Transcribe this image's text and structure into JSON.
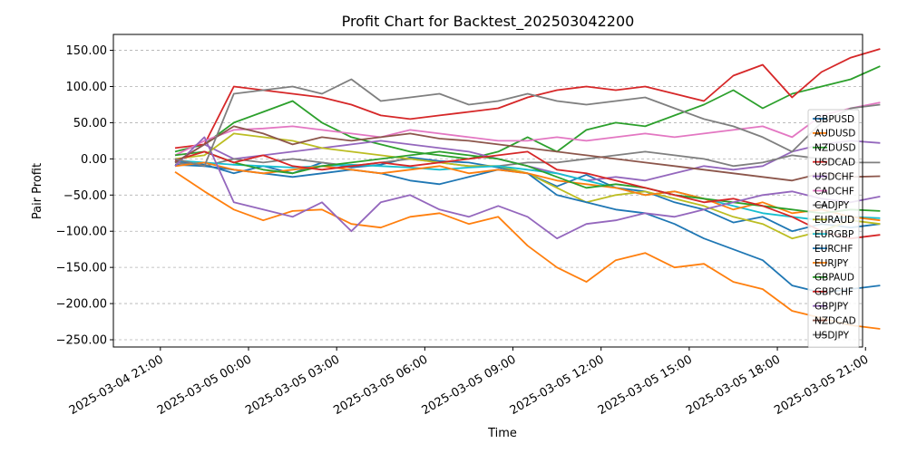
{
  "chart_data": {
    "type": "line",
    "title": "Profit Chart for Backtest_202503042200",
    "xlabel": "Time",
    "ylabel": "Pair Profit",
    "xlim": [
      -1.6,
      23.9
    ],
    "ylim": [
      -260,
      172
    ],
    "grid": true,
    "legend_position": "right",
    "x_unit": "hours since 2025-03-04 21:00",
    "x_ticks": [
      {
        "x": 0,
        "label": "2025-03-04 21:00"
      },
      {
        "x": 3,
        "label": "2025-03-05 00:00"
      },
      {
        "x": 6,
        "label": "2025-03-05 03:00"
      },
      {
        "x": 9,
        "label": "2025-03-05 06:00"
      },
      {
        "x": 12,
        "label": "2025-03-05 09:00"
      },
      {
        "x": 15,
        "label": "2025-03-05 12:00"
      },
      {
        "x": 18,
        "label": "2025-03-05 15:00"
      },
      {
        "x": 21,
        "label": "2025-03-05 18:00"
      },
      {
        "x": 24,
        "label": "2025-03-05 21:00"
      }
    ],
    "y_ticks": [
      {
        "y": 150,
        "label": "150.00"
      },
      {
        "y": 100,
        "label": "100.00"
      },
      {
        "y": 50,
        "label": "50.00"
      },
      {
        "y": 0,
        "label": "0.00"
      },
      {
        "y": -50,
        "label": "−50.00"
      },
      {
        "y": -100,
        "label": "−100.00"
      },
      {
        "y": -150,
        "label": "−150.00"
      },
      {
        "y": -200,
        "label": "−200.00"
      },
      {
        "y": -250,
        "label": "−250.00"
      }
    ],
    "x": [
      0.5,
      1.5,
      2.5,
      3.5,
      4.5,
      5.5,
      6.5,
      7.5,
      8.5,
      9.5,
      10.5,
      11.5,
      12.5,
      13.5,
      14.5,
      15.5,
      16.5,
      17.5,
      18.5,
      19.5,
      20.5,
      21.5,
      22.5,
      23.5,
      24.5
    ],
    "series": [
      {
        "name": "GBPUSD",
        "color": "#1f77b4",
        "values": [
          -3,
          -8,
          -20,
          -10,
          -20,
          -5,
          -12,
          -8,
          2,
          -3,
          -5,
          -12,
          -20,
          -38,
          -22,
          -40,
          -45,
          -60,
          -70,
          -88,
          -80,
          -100,
          -90,
          -95,
          -90
        ]
      },
      {
        "name": "AUDUSD",
        "color": "#ff7f0e",
        "values": [
          -18,
          -45,
          -70,
          -85,
          -72,
          -70,
          -90,
          -95,
          -80,
          -75,
          -90,
          -80,
          -120,
          -150,
          -170,
          -140,
          -130,
          -150,
          -145,
          -170,
          -180,
          -210,
          -220,
          -230,
          -235
        ]
      },
      {
        "name": "NZDUSD",
        "color": "#2ca02c",
        "values": [
          10,
          20,
          50,
          65,
          80,
          50,
          30,
          20,
          10,
          5,
          0,
          10,
          30,
          10,
          40,
          50,
          45,
          60,
          75,
          95,
          70,
          90,
          100,
          110,
          128
        ]
      },
      {
        "name": "USDCAD",
        "color": "#d62728",
        "values": [
          15,
          20,
          100,
          95,
          90,
          85,
          75,
          60,
          55,
          60,
          65,
          70,
          85,
          95,
          100,
          95,
          100,
          90,
          80,
          115,
          130,
          85,
          120,
          140,
          152
        ]
      },
      {
        "name": "USDCHF",
        "color": "#9467bd",
        "values": [
          -5,
          20,
          0,
          5,
          10,
          15,
          20,
          25,
          20,
          15,
          10,
          0,
          -10,
          -20,
          -30,
          -25,
          -30,
          -20,
          -10,
          -15,
          -10,
          10,
          20,
          25,
          22
        ]
      },
      {
        "name": "CADCHF",
        "color": "#e377c2",
        "values": [
          5,
          25,
          40,
          42,
          45,
          40,
          35,
          30,
          40,
          35,
          30,
          25,
          25,
          30,
          25,
          30,
          35,
          30,
          35,
          40,
          45,
          30,
          60,
          70,
          78
        ]
      },
      {
        "name": "CADJPY",
        "color": "#7f7f7f",
        "values": [
          -5,
          -10,
          0,
          -5,
          0,
          -5,
          -10,
          -5,
          0,
          -5,
          -10,
          -10,
          -5,
          -5,
          0,
          5,
          10,
          5,
          0,
          -10,
          -5,
          5,
          0,
          -5,
          -5
        ]
      },
      {
        "name": "EURAUD",
        "color": "#bcbd22",
        "values": [
          0,
          5,
          35,
          30,
          25,
          15,
          10,
          5,
          0,
          -5,
          -10,
          -10,
          -20,
          -40,
          -60,
          -50,
          -45,
          -55,
          -65,
          -80,
          -90,
          -110,
          -100,
          -85,
          -90
        ]
      },
      {
        "name": "EURGBP",
        "color": "#17becf",
        "values": [
          -2,
          -5,
          -8,
          -10,
          -12,
          -10,
          -8,
          -10,
          -12,
          -15,
          -12,
          -10,
          -15,
          -20,
          -30,
          -40,
          -50,
          -45,
          -55,
          -65,
          -75,
          -80,
          -85,
          -80,
          -82
        ]
      },
      {
        "name": "EURCHF",
        "color": "#1f77b4",
        "values": [
          -8,
          -10,
          -15,
          -20,
          -25,
          -20,
          -15,
          -20,
          -30,
          -35,
          -25,
          -15,
          -20,
          -50,
          -60,
          -70,
          -75,
          -90,
          -110,
          -125,
          -140,
          -175,
          -185,
          -180,
          -175
        ]
      },
      {
        "name": "EURJPY",
        "color": "#ff7f0e",
        "values": [
          -10,
          -5,
          -15,
          -20,
          -15,
          -10,
          -15,
          -20,
          -15,
          -10,
          -20,
          -15,
          -20,
          -30,
          -35,
          -40,
          -50,
          -45,
          -55,
          -70,
          -60,
          -75,
          -70,
          -80,
          -85
        ]
      },
      {
        "name": "GBPAUD",
        "color": "#2ca02c",
        "values": [
          5,
          10,
          -5,
          -15,
          -20,
          -10,
          -5,
          0,
          5,
          10,
          5,
          0,
          -10,
          -25,
          -40,
          -35,
          -40,
          -50,
          -55,
          -60,
          -65,
          -70,
          -75,
          -70,
          -72
        ]
      },
      {
        "name": "GBPCHF",
        "color": "#d62728",
        "values": [
          -2,
          10,
          -5,
          5,
          -10,
          -15,
          -10,
          -5,
          -10,
          -5,
          0,
          5,
          10,
          -15,
          -20,
          -30,
          -40,
          -50,
          -60,
          -55,
          -65,
          -80,
          -100,
          -110,
          -105
        ]
      },
      {
        "name": "GBPJPY",
        "color": "#9467bd",
        "values": [
          -10,
          30,
          -60,
          -70,
          -80,
          -60,
          -100,
          -60,
          -50,
          -70,
          -80,
          -65,
          -80,
          -110,
          -90,
          -85,
          -75,
          -80,
          -70,
          -60,
          -50,
          -45,
          -55,
          -60,
          -52
        ]
      },
      {
        "name": "NZDCAD",
        "color": "#8c564b",
        "values": [
          -5,
          20,
          45,
          35,
          20,
          30,
          25,
          30,
          35,
          28,
          25,
          20,
          15,
          10,
          5,
          0,
          -5,
          -10,
          -15,
          -20,
          -25,
          -30,
          -20,
          -25,
          -24
        ]
      },
      {
        "name": "USDJPY",
        "color": "#7f7f7f",
        "values": [
          0,
          -10,
          90,
          95,
          100,
          90,
          110,
          80,
          85,
          90,
          75,
          80,
          90,
          80,
          75,
          80,
          85,
          70,
          55,
          45,
          30,
          10,
          50,
          70,
          75
        ]
      }
    ]
  }
}
